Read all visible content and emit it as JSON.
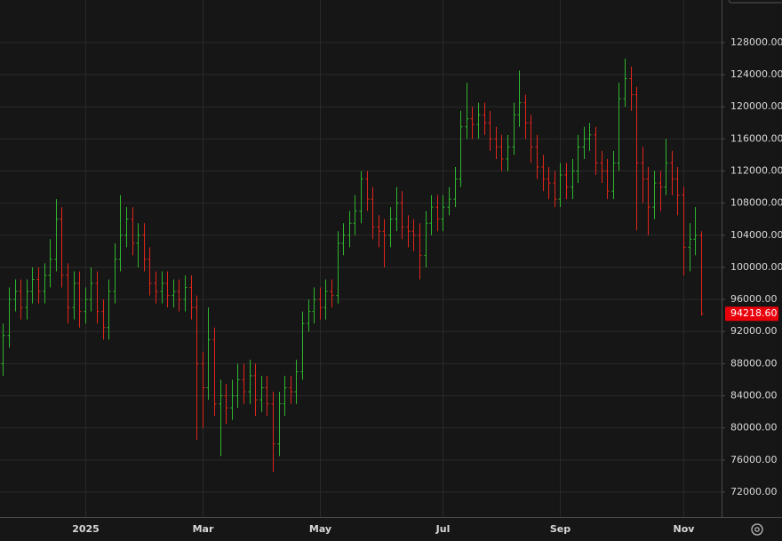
{
  "chart_data": {
    "type": "ohlc",
    "categories": [
      null,
      null,
      null,
      null,
      null,
      null,
      null,
      null,
      null,
      null,
      null,
      null,
      null,
      null,
      "2025",
      null,
      null,
      null,
      null,
      null,
      null,
      null,
      null,
      null,
      null,
      null,
      null,
      null,
      null,
      null,
      null,
      null,
      null,
      null,
      "Mar",
      null,
      null,
      null,
      null,
      null,
      null,
      null,
      null,
      null,
      null,
      null,
      null,
      null,
      null,
      null,
      null,
      null,
      null,
      null,
      "May",
      null,
      null,
      null,
      null,
      null,
      null,
      null,
      null,
      null,
      null,
      null,
      null,
      null,
      null,
      null,
      null,
      null,
      null,
      null,
      null,
      "Jul",
      null,
      null,
      null,
      null,
      null,
      null,
      null,
      null,
      null,
      null,
      null,
      null,
      null,
      null,
      null,
      null,
      null,
      null,
      null,
      "Sep",
      null,
      null,
      null,
      null,
      null,
      null,
      null,
      null,
      null,
      null,
      null,
      null,
      null,
      null,
      null,
      null,
      null,
      null,
      null,
      null,
      "Nov",
      null,
      null,
      null
    ],
    "open": [
      88000,
      91500,
      96000,
      97000,
      95000,
      97000,
      98500,
      97000,
      99000,
      101000,
      106000,
      99000,
      95000,
      98000,
      94500,
      96000,
      98000,
      94500,
      92500,
      97000,
      101000,
      104000,
      106000,
      103000,
      104000,
      101000,
      98000,
      97000,
      98000,
      96500,
      97000,
      96000,
      97500,
      95000,
      88000,
      85000,
      91000,
      83000,
      84000,
      82500,
      84000,
      86000,
      84500,
      86500,
      83500,
      85000,
      83000,
      78000,
      83000,
      85000,
      84500,
      87000,
      93000,
      94500,
      96000,
      95000,
      97000,
      96500,
      103000,
      104000,
      105500,
      107000,
      111000,
      108500,
      105000,
      104500,
      104000,
      106000,
      108000,
      105000,
      104500,
      104000,
      101500,
      105500,
      107500,
      106000,
      107500,
      108500,
      111000,
      117500,
      118500,
      117800,
      119000,
      118000,
      116000,
      115000,
      113500,
      115000,
      119000,
      120500,
      118000,
      115000,
      112500,
      111000,
      110500,
      108500,
      111500,
      110000,
      112000,
      115000,
      116000,
      116500,
      113000,
      112000,
      109500,
      113000,
      121000,
      123500,
      121500,
      113000,
      111000,
      107500,
      110500,
      110000,
      113000,
      111000,
      109000,
      102500,
      103500,
      104000
    ],
    "high": [
      93000,
      97500,
      98500,
      98500,
      98500,
      100000,
      100000,
      100500,
      103500,
      108500,
      107500,
      100500,
      99500,
      99500,
      97500,
      100000,
      99500,
      96000,
      98500,
      103000,
      109000,
      107500,
      107500,
      105500,
      105500,
      102500,
      99500,
      99500,
      99500,
      98500,
      98500,
      99000,
      99000,
      96500,
      89500,
      95000,
      92500,
      86000,
      85500,
      86000,
      88000,
      88000,
      88500,
      88000,
      86500,
      86500,
      84500,
      84500,
      86500,
      86500,
      88500,
      94500,
      96000,
      97500,
      97500,
      98500,
      98500,
      104500,
      105500,
      107000,
      109000,
      112000,
      112000,
      110000,
      106500,
      106000,
      107500,
      110000,
      109500,
      106500,
      106000,
      105500,
      107000,
      109000,
      109000,
      109000,
      110000,
      112500,
      119500,
      123000,
      120000,
      120500,
      120500,
      119500,
      117500,
      116500,
      116500,
      120500,
      124500,
      121500,
      119000,
      116500,
      114000,
      112500,
      112000,
      113000,
      113000,
      113500,
      116500,
      117500,
      118000,
      117500,
      114500,
      113500,
      114500,
      123000,
      126000,
      125000,
      122500,
      115000,
      112500,
      112000,
      112000,
      116000,
      114500,
      112500,
      110000,
      105500,
      107500,
      104500
    ],
    "low": [
      86500,
      90000,
      94500,
      93500,
      93500,
      95500,
      95500,
      95500,
      97500,
      99500,
      97500,
      93000,
      93500,
      92500,
      93000,
      94500,
      93000,
      91000,
      91000,
      95500,
      99500,
      102500,
      101500,
      100000,
      99500,
      96500,
      95500,
      95500,
      95000,
      95000,
      94500,
      94500,
      93500,
      78500,
      80000,
      83500,
      81500,
      76500,
      80500,
      81000,
      82500,
      83000,
      83000,
      81500,
      82000,
      81500,
      74500,
      76500,
      81500,
      83000,
      83000,
      86000,
      92000,
      93000,
      93500,
      93500,
      95000,
      95500,
      101500,
      102500,
      104000,
      105500,
      107000,
      103500,
      102500,
      100000,
      102500,
      104500,
      103500,
      102500,
      102000,
      98500,
      100000,
      104000,
      104500,
      104500,
      106500,
      107500,
      110000,
      116000,
      116000,
      116000,
      116500,
      114500,
      113500,
      112000,
      112000,
      114000,
      117500,
      116000,
      113000,
      111000,
      109500,
      108500,
      107500,
      107500,
      108500,
      108500,
      110500,
      113500,
      114500,
      111500,
      110500,
      108500,
      108500,
      112000,
      120000,
      119500,
      104600,
      108000,
      104000,
      106000,
      107000,
      109000,
      109000,
      106500,
      99000,
      99500,
      101500,
      94000
    ],
    "close": [
      91500,
      96000,
      97000,
      95000,
      97000,
      98500,
      97000,
      99000,
      101000,
      106000,
      99000,
      95000,
      98000,
      94500,
      96000,
      98000,
      94500,
      92500,
      97000,
      101000,
      104000,
      106000,
      103000,
      104000,
      101000,
      98000,
      97000,
      98000,
      96500,
      97000,
      96000,
      97500,
      95000,
      88000,
      85000,
      91000,
      83000,
      84000,
      82500,
      84000,
      86000,
      84500,
      86500,
      83500,
      85000,
      83000,
      78000,
      83000,
      85000,
      84500,
      87000,
      93000,
      94500,
      96000,
      95000,
      97000,
      96500,
      103000,
      104000,
      105500,
      107000,
      111000,
      108500,
      105000,
      104500,
      104000,
      106000,
      108000,
      105000,
      104500,
      104000,
      101500,
      105500,
      107500,
      106000,
      107500,
      108500,
      111000,
      117500,
      118500,
      117800,
      119000,
      118000,
      116000,
      115000,
      113500,
      115000,
      119000,
      120500,
      118000,
      115000,
      112500,
      111000,
      110500,
      108500,
      111500,
      110000,
      112000,
      115000,
      116000,
      116500,
      113000,
      112000,
      109500,
      113000,
      121000,
      123500,
      121500,
      113000,
      111000,
      107500,
      110500,
      110000,
      113000,
      111000,
      109000,
      102500,
      103500,
      104000,
      94218.6
    ],
    "up_color": "#2fb52f",
    "down_color": "#e0251b",
    "last_price": {
      "value": 94218.6,
      "label": "94218.60"
    },
    "ylim": [
      68900,
      133300
    ],
    "yticks": [
      {
        "value": 72000,
        "label": "72000.00"
      },
      {
        "value": 76000,
        "label": "76000.00"
      },
      {
        "value": 80000,
        "label": "80000.00"
      },
      {
        "value": 84000,
        "label": "84000.00"
      },
      {
        "value": 88000,
        "label": "88000.00"
      },
      {
        "value": 92000,
        "label": "92000.00"
      },
      {
        "value": 96000,
        "label": "96000.00"
      },
      {
        "value": 100000,
        "label": "100000.00"
      },
      {
        "value": 104000,
        "label": "104000.00"
      },
      {
        "value": 108000,
        "label": "108000.00"
      },
      {
        "value": 112000,
        "label": "112000.00"
      },
      {
        "value": 116000,
        "label": "116000.00"
      },
      {
        "value": 120000,
        "label": "120000.00"
      },
      {
        "value": 124000,
        "label": "124000.00"
      },
      {
        "value": 128000,
        "label": "128000.00"
      }
    ],
    "grid": true
  }
}
